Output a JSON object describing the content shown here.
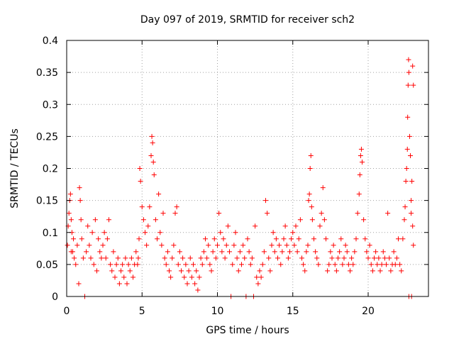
{
  "chart_data": {
    "type": "scatter",
    "title": "Day 097 of 2019, SRMTID for receiver sch2",
    "xlabel": "GPS time / hours",
    "ylabel": "SRMTID / TECUs",
    "xlim": [
      0,
      24
    ],
    "ylim": [
      0,
      0.4
    ],
    "xticks": [
      0,
      5,
      10,
      15,
      20
    ],
    "xtick_labels": [
      "0",
      "5",
      "10",
      "15",
      "20"
    ],
    "yticks": [
      0,
      0.05,
      0.1,
      0.15,
      0.2,
      0.25,
      0.3,
      0.35,
      0.4
    ],
    "ytick_labels": [
      "0",
      "0.05",
      "0.1",
      "0.15",
      "0.2",
      "0.25",
      "0.3",
      "0.35",
      "0.4"
    ],
    "grid": true,
    "marker": "plus",
    "color": "#ff0000",
    "series": [
      {
        "name": "SRMTID",
        "points": [
          [
            0.05,
            0.08
          ],
          [
            0.1,
            0.11
          ],
          [
            0.15,
            0.13
          ],
          [
            0.2,
            0.15
          ],
          [
            0.25,
            0.16
          ],
          [
            0.3,
            0.12
          ],
          [
            0.35,
            0.1
          ],
          [
            0.4,
            0.07
          ],
          [
            0.45,
            0.09
          ],
          [
            0.5,
            0.06
          ],
          [
            0.6,
            0.05
          ],
          [
            0.7,
            0.08
          ],
          [
            0.8,
            0.02
          ],
          [
            0.85,
            0.17
          ],
          [
            0.9,
            0.15
          ],
          [
            0.95,
            0.12
          ],
          [
            1.0,
            0.09
          ],
          [
            1.1,
            0.06
          ],
          [
            1.2,
            0.0
          ],
          [
            1.3,
            0.07
          ],
          [
            1.4,
            0.11
          ],
          [
            1.5,
            0.08
          ],
          [
            1.6,
            0.06
          ],
          [
            1.7,
            0.1
          ],
          [
            1.8,
            0.05
          ],
          [
            1.9,
            0.12
          ],
          [
            2.0,
            0.04
          ],
          [
            2.1,
            0.09
          ],
          [
            2.2,
            0.07
          ],
          [
            2.3,
            0.06
          ],
          [
            2.4,
            0.08
          ],
          [
            2.5,
            0.1
          ],
          [
            2.6,
            0.06
          ],
          [
            2.7,
            0.09
          ],
          [
            2.8,
            0.12
          ],
          [
            2.9,
            0.05
          ],
          [
            3.0,
            0.04
          ],
          [
            3.1,
            0.07
          ],
          [
            3.2,
            0.03
          ],
          [
            3.3,
            0.05
          ],
          [
            3.4,
            0.06
          ],
          [
            3.5,
            0.02
          ],
          [
            3.6,
            0.04
          ],
          [
            3.7,
            0.05
          ],
          [
            3.8,
            0.03
          ],
          [
            3.9,
            0.06
          ],
          [
            4.0,
            0.02
          ],
          [
            4.1,
            0.05
          ],
          [
            4.2,
            0.04
          ],
          [
            4.3,
            0.06
          ],
          [
            4.4,
            0.03
          ],
          [
            4.5,
            0.05
          ],
          [
            4.6,
            0.07
          ],
          [
            4.7,
            0.05
          ],
          [
            4.8,
            0.09
          ],
          [
            4.85,
            0.2
          ],
          [
            4.9,
            0.18
          ],
          [
            5.0,
            0.14
          ],
          [
            5.1,
            0.12
          ],
          [
            5.2,
            0.1
          ],
          [
            5.3,
            0.08
          ],
          [
            5.4,
            0.11
          ],
          [
            5.5,
            0.14
          ],
          [
            5.6,
            0.22
          ],
          [
            5.65,
            0.25
          ],
          [
            5.7,
            0.24
          ],
          [
            5.75,
            0.21
          ],
          [
            5.8,
            0.19
          ],
          [
            5.9,
            0.12
          ],
          [
            6.0,
            0.09
          ],
          [
            6.1,
            0.16
          ],
          [
            6.2,
            0.1
          ],
          [
            6.3,
            0.08
          ],
          [
            6.4,
            0.13
          ],
          [
            6.5,
            0.06
          ],
          [
            6.6,
            0.05
          ],
          [
            6.7,
            0.07
          ],
          [
            6.8,
            0.04
          ],
          [
            6.9,
            0.03
          ],
          [
            7.0,
            0.06
          ],
          [
            7.1,
            0.08
          ],
          [
            7.2,
            0.13
          ],
          [
            7.3,
            0.14
          ],
          [
            7.4,
            0.05
          ],
          [
            7.5,
            0.07
          ],
          [
            7.6,
            0.04
          ],
          [
            7.7,
            0.06
          ],
          [
            7.8,
            0.03
          ],
          [
            7.9,
            0.05
          ],
          [
            8.0,
            0.02
          ],
          [
            8.1,
            0.04
          ],
          [
            8.2,
            0.06
          ],
          [
            8.3,
            0.03
          ],
          [
            8.4,
            0.05
          ],
          [
            8.5,
            0.02
          ],
          [
            8.6,
            0.04
          ],
          [
            8.7,
            0.01
          ],
          [
            8.8,
            0.03
          ],
          [
            8.9,
            0.06
          ],
          [
            9.0,
            0.05
          ],
          [
            9.1,
            0.07
          ],
          [
            9.2,
            0.09
          ],
          [
            9.3,
            0.06
          ],
          [
            9.4,
            0.08
          ],
          [
            9.5,
            0.05
          ],
          [
            9.6,
            0.04
          ],
          [
            9.7,
            0.07
          ],
          [
            9.8,
            0.09
          ],
          [
            9.9,
            0.06
          ],
          [
            10.0,
            0.08
          ],
          [
            10.1,
            0.13
          ],
          [
            10.2,
            0.1
          ],
          [
            10.3,
            0.07
          ],
          [
            10.4,
            0.09
          ],
          [
            10.5,
            0.06
          ],
          [
            10.6,
            0.08
          ],
          [
            10.7,
            0.11
          ],
          [
            10.8,
            0.07
          ],
          [
            10.9,
            0.0
          ],
          [
            11.0,
            0.05
          ],
          [
            11.1,
            0.08
          ],
          [
            11.2,
            0.1
          ],
          [
            11.3,
            0.06
          ],
          [
            11.4,
            0.04
          ],
          [
            11.5,
            0.07
          ],
          [
            11.6,
            0.05
          ],
          [
            11.7,
            0.08
          ],
          [
            11.8,
            0.06
          ],
          [
            11.9,
            0.0
          ],
          [
            12.0,
            0.09
          ],
          [
            12.1,
            0.07
          ],
          [
            12.2,
            0.05
          ],
          [
            12.3,
            0.06
          ],
          [
            12.4,
            0.0
          ],
          [
            12.5,
            0.11
          ],
          [
            12.6,
            0.03
          ],
          [
            12.7,
            0.02
          ],
          [
            12.8,
            0.04
          ],
          [
            12.9,
            0.03
          ],
          [
            13.0,
            0.05
          ],
          [
            13.1,
            0.07
          ],
          [
            13.2,
            0.15
          ],
          [
            13.3,
            0.13
          ],
          [
            13.4,
            0.06
          ],
          [
            13.5,
            0.04
          ],
          [
            13.6,
            0.08
          ],
          [
            13.7,
            0.1
          ],
          [
            13.8,
            0.07
          ],
          [
            13.9,
            0.09
          ],
          [
            14.0,
            0.06
          ],
          [
            14.1,
            0.08
          ],
          [
            14.2,
            0.05
          ],
          [
            14.3,
            0.07
          ],
          [
            14.4,
            0.09
          ],
          [
            14.5,
            0.11
          ],
          [
            14.6,
            0.08
          ],
          [
            14.7,
            0.06
          ],
          [
            14.8,
            0.07
          ],
          [
            14.9,
            0.09
          ],
          [
            15.0,
            0.1
          ],
          [
            15.1,
            0.08
          ],
          [
            15.2,
            0.11
          ],
          [
            15.3,
            0.07
          ],
          [
            15.4,
            0.09
          ],
          [
            15.5,
            0.12
          ],
          [
            15.6,
            0.06
          ],
          [
            15.7,
            0.05
          ],
          [
            15.8,
            0.04
          ],
          [
            15.9,
            0.07
          ],
          [
            16.0,
            0.08
          ],
          [
            16.05,
            0.15
          ],
          [
            16.1,
            0.16
          ],
          [
            16.15,
            0.2
          ],
          [
            16.2,
            0.22
          ],
          [
            16.25,
            0.14
          ],
          [
            16.3,
            0.12
          ],
          [
            16.4,
            0.09
          ],
          [
            16.5,
            0.07
          ],
          [
            16.6,
            0.06
          ],
          [
            16.7,
            0.05
          ],
          [
            16.8,
            0.11
          ],
          [
            16.9,
            0.13
          ],
          [
            17.0,
            0.17
          ],
          [
            17.1,
            0.12
          ],
          [
            17.2,
            0.09
          ],
          [
            17.3,
            0.04
          ],
          [
            17.4,
            0.05
          ],
          [
            17.5,
            0.07
          ],
          [
            17.6,
            0.06
          ],
          [
            17.7,
            0.08
          ],
          [
            17.8,
            0.05
          ],
          [
            17.9,
            0.04
          ],
          [
            18.0,
            0.06
          ],
          [
            18.1,
            0.07
          ],
          [
            18.2,
            0.09
          ],
          [
            18.3,
            0.05
          ],
          [
            18.4,
            0.06
          ],
          [
            18.5,
            0.08
          ],
          [
            18.6,
            0.07
          ],
          [
            18.7,
            0.05
          ],
          [
            18.8,
            0.04
          ],
          [
            18.9,
            0.06
          ],
          [
            19.0,
            0.05
          ],
          [
            19.1,
            0.07
          ],
          [
            19.2,
            0.09
          ],
          [
            19.3,
            0.13
          ],
          [
            19.4,
            0.16
          ],
          [
            19.45,
            0.19
          ],
          [
            19.5,
            0.22
          ],
          [
            19.55,
            0.23
          ],
          [
            19.6,
            0.21
          ],
          [
            19.7,
            0.12
          ],
          [
            19.8,
            0.09
          ],
          [
            19.9,
            0.07
          ],
          [
            20.0,
            0.06
          ],
          [
            20.1,
            0.08
          ],
          [
            20.2,
            0.05
          ],
          [
            20.3,
            0.04
          ],
          [
            20.4,
            0.06
          ],
          [
            20.5,
            0.07
          ],
          [
            20.6,
            0.05
          ],
          [
            20.7,
            0.06
          ],
          [
            20.8,
            0.04
          ],
          [
            20.9,
            0.05
          ],
          [
            21.0,
            0.07
          ],
          [
            21.1,
            0.06
          ],
          [
            21.2,
            0.05
          ],
          [
            21.3,
            0.13
          ],
          [
            21.4,
            0.06
          ],
          [
            21.5,
            0.04
          ],
          [
            21.6,
            0.05
          ],
          [
            21.7,
            0.07
          ],
          [
            21.8,
            0.05
          ],
          [
            21.9,
            0.06
          ],
          [
            22.0,
            0.09
          ],
          [
            22.1,
            0.05
          ],
          [
            22.2,
            0.04
          ],
          [
            22.3,
            0.09
          ],
          [
            22.4,
            0.12
          ],
          [
            22.45,
            0.14
          ],
          [
            22.5,
            0.18
          ],
          [
            22.55,
            0.2
          ],
          [
            22.6,
            0.23
          ],
          [
            22.62,
            0.28
          ],
          [
            22.65,
            0.33
          ],
          [
            22.68,
            0.37
          ],
          [
            22.7,
            0.35
          ],
          [
            22.75,
            0.25
          ],
          [
            22.8,
            0.22
          ],
          [
            22.85,
            0.15
          ],
          [
            22.9,
            0.18
          ],
          [
            22.95,
            0.36
          ],
          [
            23.0,
            0.33
          ],
          [
            22.88,
            0.0
          ],
          [
            22.7,
            0.0
          ],
          [
            22.85,
            0.13
          ],
          [
            22.95,
            0.11
          ],
          [
            23.0,
            0.08
          ],
          [
            0.3,
            0.07
          ],
          [
            4.75,
            0.06
          ]
        ]
      }
    ]
  }
}
